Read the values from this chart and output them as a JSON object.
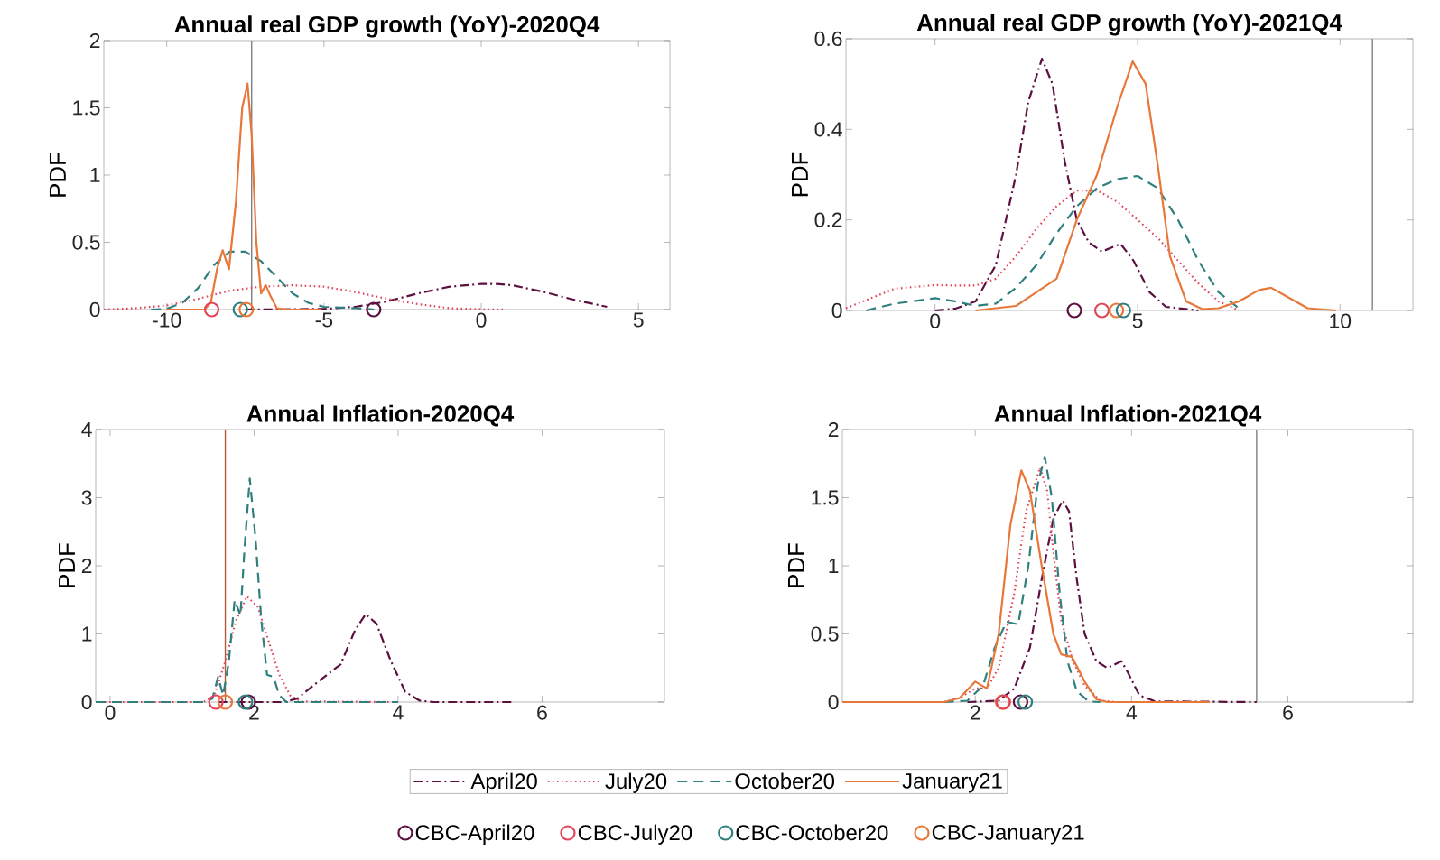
{
  "chart_data": [
    {
      "type": "line",
      "title": "Annual real GDP growth (YoY)-2020Q4",
      "ylabel": "PDF",
      "xlim": [
        -12,
        6
      ],
      "ylim": [
        0,
        2
      ],
      "xticks": [
        -10,
        -5,
        0,
        5
      ],
      "yticks": [
        0,
        0.5,
        1,
        1.5,
        2
      ],
      "ref_lines": [
        {
          "axis": "x",
          "value": -7.3,
          "color": "#808080"
        }
      ],
      "series": [
        {
          "color": "#5c1040",
          "line_style": "dashdot",
          "x": [
            -7.5,
            -6,
            -5,
            -4,
            -3,
            -2,
            -1,
            0,
            0.5,
            1,
            2,
            3,
            4
          ],
          "values": [
            0,
            0.002,
            0.005,
            0.02,
            0.06,
            0.12,
            0.17,
            0.19,
            0.19,
            0.18,
            0.13,
            0.07,
            0.02
          ]
        },
        {
          "color": "#e0455a",
          "line_style": "dotted",
          "x": [
            -12,
            -11,
            -10,
            -9,
            -8,
            -7,
            -6,
            -5,
            -4,
            -3,
            -2,
            -1,
            0,
            0.8
          ],
          "values": [
            0,
            0.01,
            0.03,
            0.08,
            0.14,
            0.17,
            0.18,
            0.17,
            0.13,
            0.08,
            0.04,
            0.01,
            0.002,
            0
          ]
        },
        {
          "color": "#2f7f7e",
          "line_style": "dashed",
          "x": [
            -10.5,
            -10,
            -9.5,
            -9,
            -8.5,
            -8,
            -7.5,
            -7,
            -6.5,
            -6,
            -5.5,
            -5,
            -4,
            -3.4
          ],
          "values": [
            0,
            0.005,
            0.05,
            0.16,
            0.33,
            0.43,
            0.43,
            0.36,
            0.24,
            0.12,
            0.05,
            0.02,
            0.01,
            0
          ]
        },
        {
          "color": "#e8773a",
          "line_style": "solid",
          "x": [
            -10,
            -8.8,
            -8.6,
            -8.4,
            -8.22,
            -8.02,
            -7.8,
            -7.6,
            -7.43,
            -7.3,
            -7.15,
            -7.0,
            -6.85,
            -6.7,
            -6.5,
            -6.2,
            -5.1
          ],
          "values": [
            0,
            0,
            0.05,
            0.3,
            0.44,
            0.3,
            0.8,
            1.5,
            1.68,
            1.3,
            0.5,
            0.12,
            0.18,
            0.1,
            0.01,
            0,
            0
          ]
        },
        {
          "type": "scatter",
          "marker": "circle",
          "color": "#e0455a",
          "x": [
            -8.57
          ],
          "values": [
            0
          ]
        },
        {
          "type": "scatter",
          "marker": "circle",
          "color": "#2f7f7e",
          "x": [
            -7.66
          ],
          "values": [
            0
          ]
        },
        {
          "type": "scatter",
          "marker": "circle",
          "color": "#e8773a",
          "x": [
            -7.47
          ],
          "values": [
            0
          ]
        },
        {
          "type": "scatter",
          "marker": "circle",
          "color": "#5c1040",
          "x": [
            -3.42
          ],
          "values": [
            0
          ]
        }
      ]
    },
    {
      "type": "line",
      "title": "Annual real GDP growth (YoY)-2021Q4",
      "ylabel": "PDF",
      "xlim": [
        -2.2,
        11.8
      ],
      "ylim": [
        0,
        0.6
      ],
      "xticks": [
        0,
        5,
        10
      ],
      "yticks": [
        0,
        0.2,
        0.4,
        0.6
      ],
      "ref_lines": [
        {
          "axis": "x",
          "value": 10.8,
          "color": "#808080"
        }
      ],
      "series": [
        {
          "color": "#5c1040",
          "line_style": "dashdot",
          "x": [
            0,
            0.5,
            1,
            1.5,
            2,
            2.3,
            2.64,
            2.9,
            3.2,
            3.5,
            3.8,
            4.12,
            4.58,
            4.9,
            5.3,
            5.7,
            6.5
          ],
          "values": [
            0,
            0.004,
            0.02,
            0.1,
            0.3,
            0.46,
            0.556,
            0.5,
            0.33,
            0.2,
            0.15,
            0.13,
            0.147,
            0.11,
            0.04,
            0.008,
            0
          ]
        },
        {
          "color": "#e0455a",
          "line_style": "dotted",
          "x": [
            -2.2,
            -1.5,
            -1,
            0,
            0.5,
            1,
            1.5,
            2,
            2.5,
            3,
            3.5,
            4,
            4.5,
            5,
            5.5,
            6,
            6.5,
            7,
            7.5
          ],
          "values": [
            0.005,
            0.03,
            0.048,
            0.056,
            0.055,
            0.055,
            0.07,
            0.12,
            0.18,
            0.23,
            0.265,
            0.265,
            0.24,
            0.2,
            0.16,
            0.11,
            0.06,
            0.02,
            0
          ]
        },
        {
          "color": "#2f7f7e",
          "line_style": "dashed",
          "x": [
            -1.7,
            -1,
            0,
            0.5,
            1,
            1.5,
            2,
            2.5,
            3,
            3.5,
            4,
            4.5,
            5,
            5.5,
            6,
            6.5,
            7,
            7.5
          ],
          "values": [
            0,
            0.015,
            0.027,
            0.02,
            0.01,
            0.015,
            0.05,
            0.1,
            0.17,
            0.23,
            0.27,
            0.29,
            0.297,
            0.27,
            0.2,
            0.11,
            0.04,
            0.005
          ]
        },
        {
          "color": "#e8773a",
          "line_style": "solid",
          "x": [
            1,
            2,
            2.5,
            3,
            3.5,
            4,
            4.5,
            4.88,
            5.2,
            5.5,
            5.8,
            6.2,
            6.6,
            7,
            7.5,
            8,
            8.3,
            8.7,
            9.2,
            9.9
          ],
          "values": [
            0,
            0.01,
            0.04,
            0.07,
            0.2,
            0.3,
            0.45,
            0.55,
            0.5,
            0.32,
            0.12,
            0.02,
            0.003,
            0.005,
            0.02,
            0.045,
            0.05,
            0.03,
            0.005,
            0
          ]
        },
        {
          "type": "scatter",
          "marker": "circle",
          "color": "#5c1040",
          "x": [
            3.44
          ],
          "values": [
            0
          ]
        },
        {
          "type": "scatter",
          "marker": "circle",
          "color": "#e0455a",
          "x": [
            4.12
          ],
          "values": [
            0
          ]
        },
        {
          "type": "scatter",
          "marker": "circle",
          "color": "#e8773a",
          "x": [
            4.48
          ],
          "values": [
            0
          ]
        },
        {
          "type": "scatter",
          "marker": "circle",
          "color": "#2f7f7e",
          "x": [
            4.65
          ],
          "values": [
            0
          ]
        }
      ]
    },
    {
      "type": "line",
      "title": "Annual Inflation-2020Q4",
      "ylabel": "PDF",
      "xlim": [
        -0.2,
        7.7
      ],
      "ylim": [
        0,
        4
      ],
      "xticks": [
        0,
        2,
        4,
        6
      ],
      "yticks": [
        0,
        1,
        2,
        3,
        4
      ],
      "legend": "bottom",
      "ref_lines": [
        {
          "axis": "x",
          "value": 1.6,
          "color": "#b05a3a"
        }
      ],
      "series": [
        {
          "color": "#5c1040",
          "line_style": "dashdot",
          "x": [
            1.5,
            2.4,
            2.6,
            2.9,
            3.2,
            3.4,
            3.55,
            3.7,
            3.9,
            4.1,
            4.3,
            4.5,
            5.6
          ],
          "values": [
            0,
            0,
            0.05,
            0.31,
            0.55,
            1.05,
            1.29,
            1.15,
            0.6,
            0.15,
            0.02,
            0,
            0
          ]
        },
        {
          "color": "#e0455a",
          "line_style": "dotted",
          "x": [
            -0.2,
            1.3,
            1.45,
            1.6,
            1.75,
            1.9,
            2.05,
            2.2,
            2.35,
            2.5,
            2.65,
            3.9
          ],
          "values": [
            0,
            0,
            0.1,
            0.6,
            1.2,
            1.55,
            1.4,
            0.9,
            0.4,
            0.1,
            0.01,
            0
          ]
        },
        {
          "color": "#2f7f7e",
          "line_style": "dashed",
          "x": [
            -0.2,
            1.3,
            1.42,
            1.5,
            1.57,
            1.65,
            1.73,
            1.81,
            1.87,
            1.94,
            2.02,
            2.1,
            2.18,
            2.27,
            2.35,
            2.45,
            4
          ],
          "values": [
            0,
            0,
            0.05,
            0.37,
            0.1,
            0.6,
            1.5,
            1.27,
            2.3,
            3.28,
            2.4,
            1.2,
            0.4,
            0.37,
            0.1,
            0,
            0
          ]
        },
        {
          "type": "scatter",
          "marker": "circle",
          "name": "CBC-April20",
          "color": "#5c1040",
          "x": [
            1.92
          ],
          "values": [
            0
          ]
        },
        {
          "type": "scatter",
          "marker": "circle",
          "name": "CBC-July20",
          "color": "#e0455a",
          "x": [
            1.47
          ],
          "values": [
            0
          ]
        },
        {
          "type": "scatter",
          "marker": "circle",
          "name": "CBC-October20",
          "color": "#2f7f7e",
          "x": [
            1.88
          ],
          "values": [
            0
          ]
        },
        {
          "type": "scatter",
          "marker": "circle",
          "name": "CBC-January21",
          "color": "#e8773a",
          "x": [
            1.6
          ],
          "values": [
            0
          ]
        }
      ]
    },
    {
      "type": "line",
      "title": "Annual Inflation-2021Q4",
      "ylabel": "PDF",
      "xlim": [
        0.3,
        7.6
      ],
      "ylim": [
        0,
        2
      ],
      "xticks": [
        2,
        4,
        6
      ],
      "yticks": [
        0,
        0.5,
        1,
        1.5,
        2
      ],
      "legend": "bottom",
      "ref_lines": [
        {
          "axis": "x",
          "value": 5.6,
          "color": "#808080"
        }
      ],
      "series": [
        {
          "name": "April20",
          "color": "#5c1040",
          "line_style": "dashdot",
          "x": [
            1.9,
            2.3,
            2.5,
            2.7,
            2.85,
            3.0,
            3.12,
            3.2,
            3.3,
            3.4,
            3.55,
            3.69,
            3.87,
            3.95,
            4.1,
            4.3,
            5.6
          ],
          "values": [
            0,
            0.01,
            0.1,
            0.4,
            0.9,
            1.35,
            1.48,
            1.4,
            0.9,
            0.5,
            0.3,
            0.25,
            0.3,
            0.22,
            0.05,
            0.005,
            0
          ]
        },
        {
          "name": "July20",
          "color": "#e0455a",
          "line_style": "dotted",
          "x": [
            1.6,
            1.8,
            2.0,
            2.15,
            2.3,
            2.5,
            2.65,
            2.83,
            2.92,
            3.0,
            3.1,
            3.25,
            3.4,
            3.6,
            3.8
          ],
          "values": [
            0,
            0.03,
            0.1,
            0.1,
            0.25,
            0.8,
            1.4,
            1.72,
            1.55,
            1.1,
            0.6,
            0.3,
            0.12,
            0.01,
            0
          ]
        },
        {
          "name": "October20",
          "color": "#2f7f7e",
          "line_style": "dashed",
          "x": [
            1.6,
            1.9,
            2.1,
            2.25,
            2.4,
            2.55,
            2.68,
            2.8,
            2.89,
            2.98,
            3.08,
            3.18,
            3.3,
            3.45,
            3.6
          ],
          "values": [
            0,
            0.01,
            0.12,
            0.4,
            0.59,
            0.57,
            1.0,
            1.6,
            1.8,
            1.5,
            0.8,
            0.3,
            0.08,
            0.005,
            0
          ]
        },
        {
          "name": "January21",
          "color": "#e8773a",
          "line_style": "solid",
          "x": [
            0.3,
            1.6,
            1.8,
            2.0,
            2.15,
            2.3,
            2.45,
            2.59,
            2.7,
            2.85,
            3.0,
            3.1,
            3.24,
            3.4,
            3.55,
            3.7,
            5.0
          ],
          "values": [
            0,
            0,
            0.03,
            0.15,
            0.1,
            0.5,
            1.3,
            1.7,
            1.55,
            1.0,
            0.5,
            0.35,
            0.33,
            0.15,
            0.02,
            0,
            0
          ]
        },
        {
          "type": "scatter",
          "marker": "circle",
          "color": "#e8773a",
          "x": [
            2.35
          ],
          "values": [
            0
          ]
        },
        {
          "type": "scatter",
          "marker": "circle",
          "color": "#e0455a",
          "x": [
            2.36
          ],
          "values": [
            0
          ]
        },
        {
          "type": "scatter",
          "marker": "circle",
          "color": "#5c1040",
          "x": [
            2.58
          ],
          "values": [
            0
          ]
        },
        {
          "type": "scatter",
          "marker": "circle",
          "color": "#2f7f7e",
          "x": [
            2.64
          ],
          "values": [
            0
          ]
        }
      ]
    }
  ]
}
